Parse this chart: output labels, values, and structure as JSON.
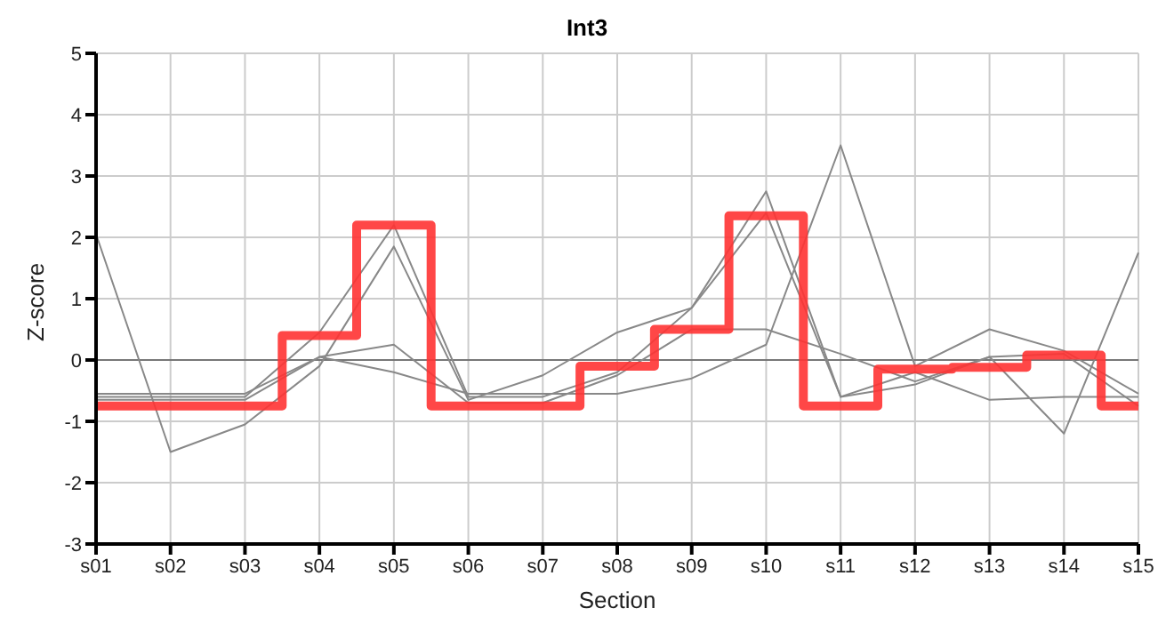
{
  "chart_data": {
    "type": "line",
    "title": "Int3",
    "xlabel": "Section",
    "ylabel": "Z-score",
    "categories": [
      "s01",
      "s02",
      "s03",
      "s04",
      "s05",
      "s06",
      "s07",
      "s08",
      "s09",
      "s10",
      "s11",
      "s12",
      "s13",
      "s14",
      "s15"
    ],
    "series": [
      {
        "color": "#888888",
        "values": [
          2.05,
          -1.5,
          -1.05,
          -0.1,
          1.85,
          -0.65,
          -0.25,
          0.45,
          0.85,
          2.75,
          -0.6,
          -0.4,
          0.05,
          -1.2,
          1.75
        ]
      },
      {
        "color": "#888888",
        "values": [
          -0.55,
          -0.55,
          -0.55,
          0.05,
          -0.2,
          -0.55,
          -0.55,
          -0.55,
          -0.3,
          0.25,
          3.5,
          -0.1,
          0.5,
          0.15,
          -0.55
        ]
      },
      {
        "color": "#888888",
        "values": [
          -0.6,
          -0.6,
          -0.6,
          0.45,
          2.2,
          -0.6,
          -0.6,
          -0.2,
          0.85,
          2.4,
          -0.6,
          -0.2,
          -0.65,
          -0.6,
          -0.6
        ]
      },
      {
        "color": "#888888",
        "values": [
          -0.65,
          -0.65,
          -0.65,
          0.05,
          0.25,
          -0.7,
          -0.7,
          -0.25,
          0.5,
          0.5,
          0.1,
          -0.35,
          0.05,
          0.1,
          -0.75
        ]
      },
      {
        "type": "step",
        "color": "#ff3333",
        "values": [
          -0.75,
          -0.75,
          -0.75,
          0.4,
          2.2,
          -0.75,
          -0.75,
          -0.1,
          0.5,
          2.35,
          -0.75,
          -0.15,
          -0.12,
          0.08,
          -0.75
        ]
      }
    ],
    "ylim": [
      -3,
      5
    ],
    "yticks": [
      -3,
      -2,
      -1,
      0,
      1,
      2,
      3,
      4,
      5
    ],
    "grid": true,
    "legend": false,
    "marker": "none",
    "ref_lines": [
      {
        "axis": "y",
        "value": 0,
        "color": "#777777"
      }
    ]
  }
}
